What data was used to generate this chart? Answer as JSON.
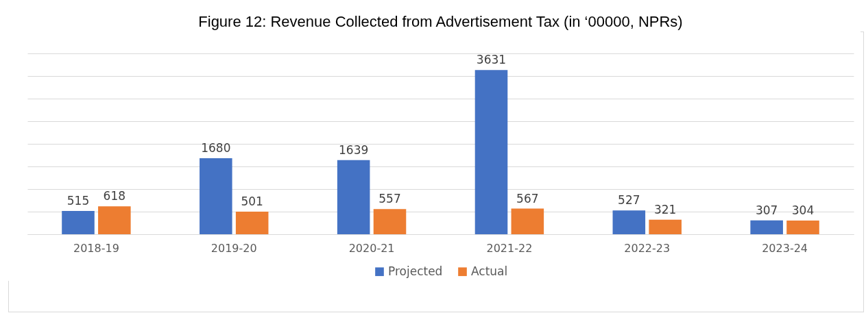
{
  "chart_data": {
    "type": "bar",
    "title": "Figure 12: Revenue Collected from Advertisement Tax (in ‘00000, NPRs)",
    "categories": [
      "2018-19",
      "2019-20",
      "2020-21",
      "2021-22",
      "2022-23",
      "2023-24"
    ],
    "series": [
      {
        "name": "Projected",
        "color": "#4472c4",
        "values": [
          515,
          1680,
          1639,
          3631,
          527,
          307
        ]
      },
      {
        "name": "Actual",
        "color": "#ed7d31",
        "values": [
          618,
          501,
          557,
          567,
          321,
          304
        ]
      }
    ],
    "ylim": [
      0,
      4000
    ],
    "yticks": [
      {
        "value": 0,
        "label": null
      },
      {
        "value": 500,
        "label": null
      },
      {
        "value": 1000,
        "label": null
      },
      {
        "value": 1500,
        "label": null
      },
      {
        "value": 2000,
        "label": null
      },
      {
        "value": 2500,
        "label": null
      },
      {
        "value": 3000,
        "label": null
      },
      {
        "value": 3500,
        "label": null
      },
      {
        "value": 4000,
        "label": null
      }
    ],
    "tick_labels": "x",
    "grid": "y",
    "legend": "bottom",
    "data_labels": true
  }
}
